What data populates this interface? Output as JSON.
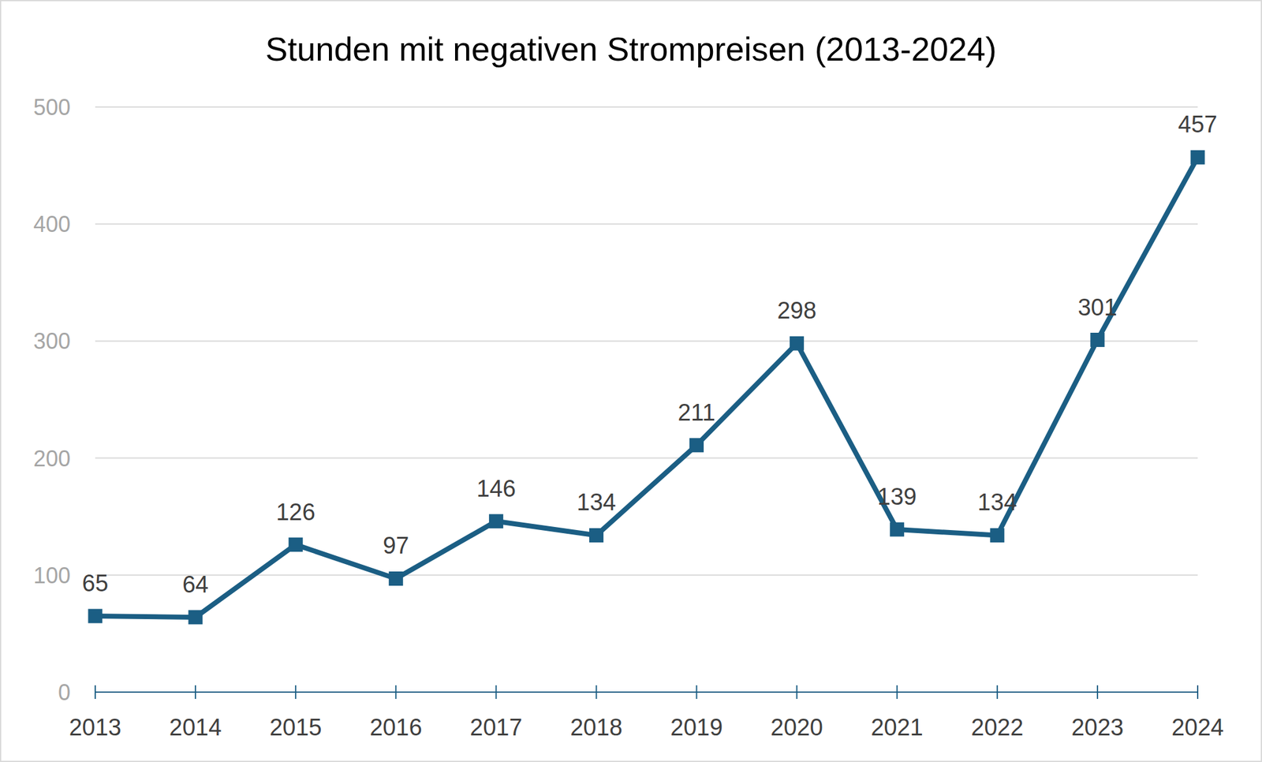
{
  "chart_data": {
    "type": "line",
    "title": "Stunden mit negativen Strompreisen (2013-2024)",
    "categories": [
      "2013",
      "2014",
      "2015",
      "2016",
      "2017",
      "2018",
      "2019",
      "2020",
      "2021",
      "2022",
      "2023",
      "2024"
    ],
    "values": [
      65,
      64,
      126,
      97,
      146,
      134,
      211,
      298,
      139,
      134,
      301,
      457
    ],
    "color": "#1b5e84",
    "marker": "square",
    "line_style": "solid",
    "ylim": [
      0,
      500
    ],
    "yticks": [
      0,
      100,
      200,
      300,
      400,
      500
    ],
    "grid": true,
    "data_labels": true
  }
}
